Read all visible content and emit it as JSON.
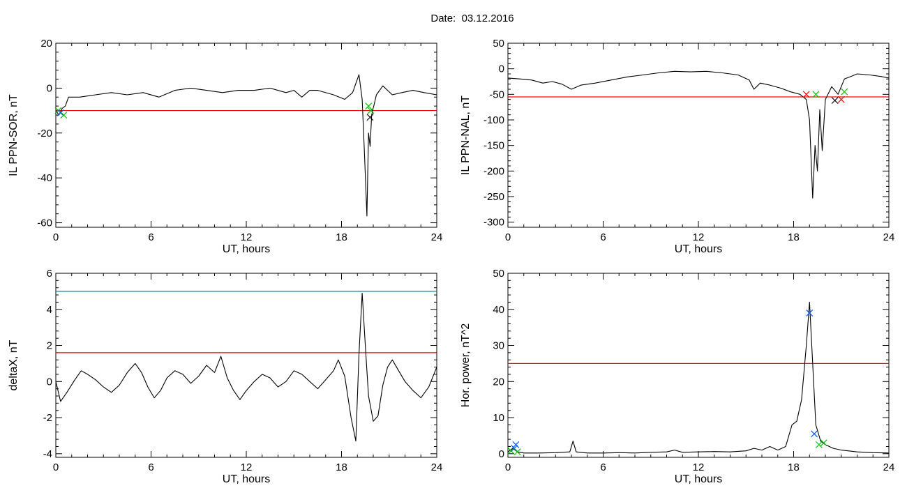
{
  "header": {
    "date_label": "Date:",
    "date_value": "03.12.2016"
  },
  "colors": {
    "trace": "#000000",
    "threshold_red": "#ff0000",
    "threshold_teal": "#008b8b",
    "highlight_blue": "#0066ff",
    "marker_green": "#00c000",
    "marker_red": "#ff0000",
    "marker_blue": "#0055ff",
    "marker_black": "#000000"
  },
  "chart_data": [
    {
      "type": "line",
      "xlabel": "UT, hours",
      "ylabel": "IL PPN-SOR, nT",
      "xlim": [
        0,
        24
      ],
      "ylim": [
        -62,
        20
      ],
      "xticks": [
        0,
        6,
        12,
        18,
        24
      ],
      "yticks": [
        20,
        0,
        -20,
        -40,
        -60
      ],
      "grid": false,
      "threshold": {
        "y": -10,
        "color": "#ff0000"
      },
      "series": [
        {
          "points": [
            [
              0.0,
              -10
            ],
            [
              0.2,
              -12
            ],
            [
              0.4,
              -9
            ],
            [
              0.6,
              -8
            ],
            [
              0.8,
              -4
            ],
            [
              1.5,
              -4
            ],
            [
              2.5,
              -3
            ],
            [
              3.5,
              -2
            ],
            [
              4.5,
              -3
            ],
            [
              5.5,
              -2
            ],
            [
              6.5,
              -4
            ],
            [
              7.5,
              -1
            ],
            [
              8.5,
              0
            ],
            [
              9.5,
              -1
            ],
            [
              10.5,
              -2
            ],
            [
              11.5,
              -1
            ],
            [
              12.5,
              -1
            ],
            [
              13.5,
              0
            ],
            [
              14.5,
              -2
            ],
            [
              15.0,
              -1
            ],
            [
              15.5,
              -4
            ],
            [
              16.0,
              -1
            ],
            [
              16.5,
              -1
            ],
            [
              17.5,
              -3
            ],
            [
              18.2,
              -5
            ],
            [
              18.7,
              -2
            ],
            [
              19.1,
              6
            ],
            [
              19.3,
              -5
            ],
            [
              19.45,
              -30
            ],
            [
              19.6,
              -57
            ],
            [
              19.7,
              -20
            ],
            [
              19.8,
              -26
            ],
            [
              19.9,
              -12
            ],
            [
              20.2,
              -3
            ],
            [
              20.6,
              1
            ],
            [
              21.2,
              -3
            ],
            [
              21.8,
              -2
            ],
            [
              22.5,
              -1
            ],
            [
              23.2,
              -2
            ],
            [
              24.0,
              -3
            ]
          ]
        }
      ],
      "markers": [
        {
          "x": 0.15,
          "y": -10,
          "color": "#00c000"
        },
        {
          "x": 0.3,
          "y": -11,
          "color": "#0055ff"
        },
        {
          "x": 0.5,
          "y": -12,
          "color": "#00c000"
        },
        {
          "x": 19.7,
          "y": -8,
          "color": "#00c000"
        },
        {
          "x": 19.85,
          "y": -10,
          "color": "#00c000"
        },
        {
          "x": 19.8,
          "y": -13,
          "color": "#000000"
        }
      ]
    },
    {
      "type": "line",
      "xlabel": "UT, hours",
      "ylabel": "IL PPN-NAL, nT",
      "xlim": [
        0,
        24
      ],
      "ylim": [
        -310,
        50
      ],
      "xticks": [
        0,
        6,
        12,
        18,
        24
      ],
      "yticks": [
        50,
        0,
        -50,
        -100,
        -150,
        -200,
        -250,
        -300
      ],
      "grid": false,
      "threshold": {
        "y": -55,
        "color": "#ff0000"
      },
      "series": [
        {
          "points": [
            [
              0.0,
              -18
            ],
            [
              0.8,
              -20
            ],
            [
              1.5,
              -22
            ],
            [
              2.2,
              -28
            ],
            [
              2.8,
              -25
            ],
            [
              3.4,
              -30
            ],
            [
              4.0,
              -40
            ],
            [
              4.6,
              -32
            ],
            [
              5.5,
              -28
            ],
            [
              6.5,
              -22
            ],
            [
              7.5,
              -16
            ],
            [
              8.5,
              -12
            ],
            [
              9.5,
              -8
            ],
            [
              10.5,
              -5
            ],
            [
              11.5,
              -6
            ],
            [
              12.5,
              -5
            ],
            [
              13.5,
              -8
            ],
            [
              14.5,
              -12
            ],
            [
              15.2,
              -22
            ],
            [
              15.5,
              -40
            ],
            [
              15.9,
              -28
            ],
            [
              16.5,
              -32
            ],
            [
              17.2,
              -38
            ],
            [
              17.8,
              -45
            ],
            [
              18.4,
              -50
            ],
            [
              18.8,
              -60
            ],
            [
              19.0,
              -100
            ],
            [
              19.2,
              -253
            ],
            [
              19.35,
              -150
            ],
            [
              19.5,
              -200
            ],
            [
              19.65,
              -80
            ],
            [
              19.8,
              -160
            ],
            [
              20.0,
              -60
            ],
            [
              20.4,
              -35
            ],
            [
              20.8,
              -50
            ],
            [
              21.2,
              -20
            ],
            [
              21.6,
              -15
            ],
            [
              22.0,
              -10
            ],
            [
              22.8,
              -12
            ],
            [
              23.5,
              -15
            ],
            [
              24.0,
              -18
            ]
          ]
        }
      ],
      "markers": [
        {
          "x": 18.8,
          "y": -50,
          "color": "#ff0000"
        },
        {
          "x": 19.4,
          "y": -50,
          "color": "#00c000"
        },
        {
          "x": 20.6,
          "y": -62,
          "color": "#000000"
        },
        {
          "x": 21.0,
          "y": -60,
          "color": "#ff0000"
        },
        {
          "x": 21.2,
          "y": -45,
          "color": "#00c000"
        }
      ]
    },
    {
      "type": "line",
      "xlabel": "UT, hours",
      "ylabel": "deltaX, nT",
      "xlim": [
        0,
        24
      ],
      "ylim": [
        -4.2,
        6
      ],
      "xticks": [
        0,
        6,
        12,
        18,
        24
      ],
      "yticks": [
        6,
        4,
        2,
        0,
        -2,
        -4
      ],
      "grid": false,
      "thresholds": [
        {
          "y": 5.0,
          "color": "#008b8b"
        },
        {
          "y": 1.6,
          "color": "#ff0000"
        }
      ],
      "series": [
        {
          "points": [
            [
              0.0,
              0
            ],
            [
              0.3,
              -1.1
            ],
            [
              0.7,
              -0.6
            ],
            [
              1.2,
              0.1
            ],
            [
              1.6,
              0.6
            ],
            [
              2.0,
              0.4
            ],
            [
              2.5,
              0.1
            ],
            [
              3.0,
              -0.3
            ],
            [
              3.5,
              -0.6
            ],
            [
              4.0,
              -0.2
            ],
            [
              4.5,
              0.5
            ],
            [
              5.0,
              1.0
            ],
            [
              5.4,
              0.5
            ],
            [
              5.8,
              -0.3
            ],
            [
              6.2,
              -0.9
            ],
            [
              6.6,
              -0.5
            ],
            [
              7.0,
              0.2
            ],
            [
              7.5,
              0.6
            ],
            [
              8.0,
              0.4
            ],
            [
              8.5,
              -0.1
            ],
            [
              9.0,
              0.3
            ],
            [
              9.5,
              0.9
            ],
            [
              10.0,
              0.5
            ],
            [
              10.4,
              1.4
            ],
            [
              10.8,
              0.2
            ],
            [
              11.2,
              -0.5
            ],
            [
              11.6,
              -1.0
            ],
            [
              12.0,
              -0.5
            ],
            [
              12.5,
              0.0
            ],
            [
              13.0,
              0.4
            ],
            [
              13.5,
              0.2
            ],
            [
              14.0,
              -0.3
            ],
            [
              14.5,
              0.0
            ],
            [
              15.0,
              0.6
            ],
            [
              15.5,
              0.4
            ],
            [
              16.0,
              0.0
            ],
            [
              16.5,
              -0.4
            ],
            [
              17.0,
              0.1
            ],
            [
              17.5,
              0.6
            ],
            [
              17.8,
              1.2
            ],
            [
              18.2,
              0.3
            ],
            [
              18.6,
              -2.0
            ],
            [
              18.9,
              -3.3
            ],
            [
              19.1,
              1.5
            ],
            [
              19.3,
              4.9
            ],
            [
              19.5,
              2.0
            ],
            [
              19.7,
              -0.8
            ],
            [
              20.0,
              -2.2
            ],
            [
              20.3,
              -1.9
            ],
            [
              20.6,
              -0.2
            ],
            [
              20.9,
              0.8
            ],
            [
              21.2,
              1.2
            ],
            [
              21.6,
              0.6
            ],
            [
              22.0,
              0.0
            ],
            [
              22.5,
              -0.5
            ],
            [
              23.0,
              -0.9
            ],
            [
              23.5,
              -0.3
            ],
            [
              24.0,
              0.8
            ]
          ]
        }
      ],
      "markers": []
    },
    {
      "type": "line",
      "xlabel": "UT, hours",
      "ylabel": "Hor. power, nT^2",
      "xlim": [
        0,
        24
      ],
      "ylim": [
        -1,
        50
      ],
      "xticks": [
        0,
        6,
        12,
        18,
        24
      ],
      "yticks": [
        50,
        40,
        30,
        20,
        10,
        0
      ],
      "grid": false,
      "threshold": {
        "y": 25,
        "color": "#ff0000"
      },
      "series": [
        {
          "points": [
            [
              0.0,
              0.5
            ],
            [
              0.3,
              1.5
            ],
            [
              0.6,
              0.5
            ],
            [
              1.0,
              0.2
            ],
            [
              2.0,
              0.2
            ],
            [
              3.0,
              0.3
            ],
            [
              3.9,
              0.5
            ],
            [
              4.1,
              3.5
            ],
            [
              4.3,
              0.5
            ],
            [
              5.0,
              0.2
            ],
            [
              6.0,
              0.2
            ],
            [
              7.0,
              0.3
            ],
            [
              8.0,
              0.2
            ],
            [
              9.0,
              0.4
            ],
            [
              10.0,
              0.5
            ],
            [
              10.5,
              1.0
            ],
            [
              11.0,
              0.4
            ],
            [
              12.0,
              0.5
            ],
            [
              13.0,
              0.6
            ],
            [
              14.0,
              0.5
            ],
            [
              15.0,
              0.8
            ],
            [
              15.5,
              1.5
            ],
            [
              16.0,
              1.0
            ],
            [
              16.5,
              2.0
            ],
            [
              17.0,
              1.0
            ],
            [
              17.5,
              2.0
            ],
            [
              17.9,
              8.0
            ],
            [
              18.2,
              9.0
            ],
            [
              18.5,
              15.0
            ],
            [
              18.8,
              30.0
            ],
            [
              19.0,
              42.0
            ],
            [
              19.2,
              25.0
            ],
            [
              19.4,
              8.0
            ],
            [
              19.7,
              3.5
            ],
            [
              20.0,
              2.5
            ],
            [
              20.5,
              1.5
            ],
            [
              21.0,
              1.0
            ],
            [
              22.0,
              0.5
            ],
            [
              23.0,
              0.3
            ],
            [
              24.0,
              0.2
            ]
          ]
        }
      ],
      "markers": [
        {
          "x": 0.2,
          "y": 0.8,
          "color": "#00c000"
        },
        {
          "x": 0.4,
          "y": 1.5,
          "color": "#0055ff"
        },
        {
          "x": 0.5,
          "y": 2.5,
          "color": "#0055ff"
        },
        {
          "x": 0.6,
          "y": 0.5,
          "color": "#00c000"
        },
        {
          "x": 19.0,
          "y": 39.0,
          "color": "#0055ff"
        },
        {
          "x": 19.3,
          "y": 5.5,
          "color": "#0055ff"
        },
        {
          "x": 19.6,
          "y": 2.5,
          "color": "#00c000"
        },
        {
          "x": 19.9,
          "y": 3.0,
          "color": "#00c000"
        }
      ]
    }
  ]
}
